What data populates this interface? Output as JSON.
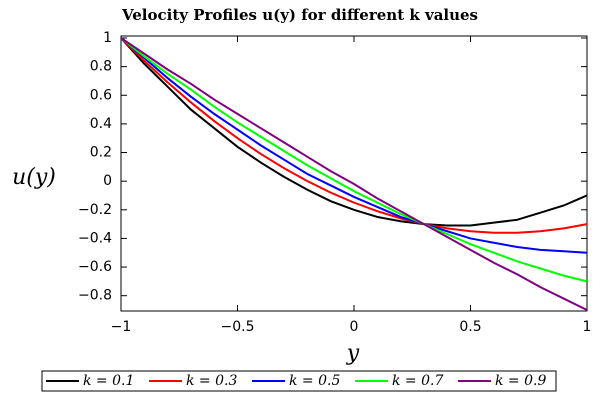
{
  "chart_data": {
    "type": "line",
    "title": "Velocity Profiles u(y) for different k values",
    "x_label": "y",
    "y_label": "u(y)",
    "x": [
      -1,
      -0.9,
      -0.8,
      -0.7,
      -0.6,
      -0.5,
      -0.4,
      -0.3,
      -0.2,
      -0.1,
      0,
      0.1,
      0.2,
      0.3,
      0.4,
      0.5,
      0.6,
      0.7,
      0.8,
      0.9,
      1
    ],
    "series": [
      {
        "name": "k = 0.1",
        "color": "#000000",
        "values": [
          1,
          0.82,
          0.66,
          0.5,
          0.37,
          0.24,
          0.13,
          0.03,
          -0.06,
          -0.14,
          -0.2,
          -0.25,
          -0.28,
          -0.3,
          -0.31,
          -0.31,
          -0.29,
          -0.27,
          -0.22,
          -0.17,
          -0.1
        ]
      },
      {
        "name": "k = 0.3",
        "color": "#ff0000",
        "values": [
          1,
          0.84,
          0.69,
          0.55,
          0.42,
          0.3,
          0.19,
          0.09,
          0,
          -0.08,
          -0.15,
          -0.21,
          -0.26,
          -0.3,
          -0.33,
          -0.35,
          -0.36,
          -0.36,
          -0.35,
          -0.33,
          -0.3
        ]
      },
      {
        "name": "k = 0.5",
        "color": "#0000ff",
        "values": [
          1,
          0.86,
          0.72,
          0.59,
          0.47,
          0.36,
          0.25,
          0.15,
          0.05,
          -0.03,
          -0.11,
          -0.18,
          -0.25,
          -0.3,
          -0.35,
          -0.4,
          -0.43,
          -0.46,
          -0.48,
          -0.49,
          -0.5
        ]
      },
      {
        "name": "k = 0.7",
        "color": "#00ff00",
        "values": [
          1,
          0.87,
          0.75,
          0.64,
          0.52,
          0.41,
          0.31,
          0.21,
          0.11,
          0.02,
          -0.07,
          -0.15,
          -0.23,
          -0.3,
          -0.37,
          -0.44,
          -0.5,
          -0.56,
          -0.61,
          -0.66,
          -0.7
        ]
      },
      {
        "name": "k = 0.9",
        "color": "#800080",
        "values": [
          1,
          0.89,
          0.78,
          0.68,
          0.57,
          0.47,
          0.37,
          0.27,
          0.17,
          0.07,
          -0.02,
          -0.12,
          -0.21,
          -0.3,
          -0.39,
          -0.48,
          -0.57,
          -0.65,
          -0.74,
          -0.82,
          -0.9
        ]
      }
    ],
    "xlim": [
      -1,
      1
    ],
    "xticks": [
      {
        "value": -1,
        "label": "−1"
      },
      {
        "value": -0.5,
        "label": "−0.5"
      },
      0,
      0.5,
      1
    ],
    "ylim": [
      -0.9,
      1
    ],
    "yticks": [
      {
        "value": -0.8,
        "label": "−0.8"
      },
      {
        "value": -0.6,
        "label": "−0.6"
      },
      {
        "value": -0.4,
        "label": "−0.4"
      },
      {
        "value": -0.2,
        "label": "−0.2"
      },
      0,
      0.2,
      0.4,
      0.6,
      0.8,
      1
    ],
    "grid": false,
    "legend": "bottom"
  }
}
